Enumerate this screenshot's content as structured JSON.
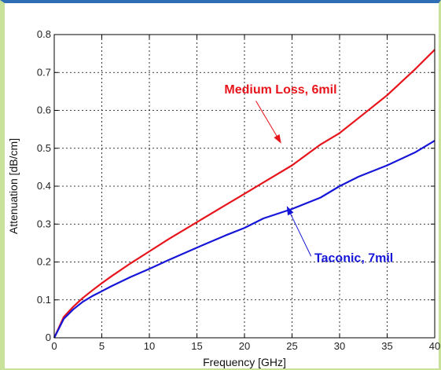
{
  "chart_data": {
    "type": "line",
    "xlabel": "Frequency [GHz]",
    "ylabel": "Attenuation [dB/cm]",
    "xlim": [
      0,
      40
    ],
    "ylim": [
      0,
      0.8
    ],
    "xticks": [
      0,
      5,
      10,
      15,
      20,
      25,
      30,
      35,
      40
    ],
    "yticks": [
      0,
      0.1,
      0.2,
      0.3,
      0.4,
      0.5,
      0.6,
      0.7,
      0.8
    ],
    "grid": true,
    "series": [
      {
        "name": "Medium Loss, 6mil",
        "color": "#e8141c",
        "x": [
          0,
          1,
          2,
          3,
          4,
          5,
          6,
          8,
          10,
          12,
          15,
          18,
          20,
          22,
          25,
          28,
          30,
          32,
          35,
          38,
          40
        ],
        "y": [
          0,
          0.055,
          0.082,
          0.105,
          0.125,
          0.144,
          0.162,
          0.196,
          0.228,
          0.26,
          0.305,
          0.35,
          0.38,
          0.41,
          0.455,
          0.51,
          0.54,
          0.58,
          0.64,
          0.71,
          0.76
        ]
      },
      {
        "name": "Taconic, 7mil",
        "color": "#1616d9",
        "x": [
          0,
          1,
          2,
          3,
          4,
          5,
          6,
          8,
          10,
          12,
          15,
          18,
          20,
          22,
          25,
          28,
          30,
          32,
          35,
          38,
          40
        ],
        "y": [
          0,
          0.05,
          0.075,
          0.095,
          0.11,
          0.123,
          0.136,
          0.16,
          0.182,
          0.205,
          0.238,
          0.27,
          0.29,
          0.315,
          0.34,
          0.37,
          0.4,
          0.425,
          0.455,
          0.49,
          0.52
        ]
      }
    ],
    "annotations": [
      {
        "text": "Medium Loss, 6mil",
        "color": "#e8141c",
        "text_at": [
          23.8,
          0.645
        ],
        "arrow_from": [
          21.2,
          0.625
        ],
        "arrow_to": [
          23.8,
          0.515
        ]
      },
      {
        "text": "Taconic, 7mil",
        "color": "#1616d9",
        "text_at": [
          31.5,
          0.2
        ],
        "arrow_from": [
          27.0,
          0.215
        ],
        "arrow_to": [
          24.5,
          0.345
        ]
      }
    ]
  }
}
